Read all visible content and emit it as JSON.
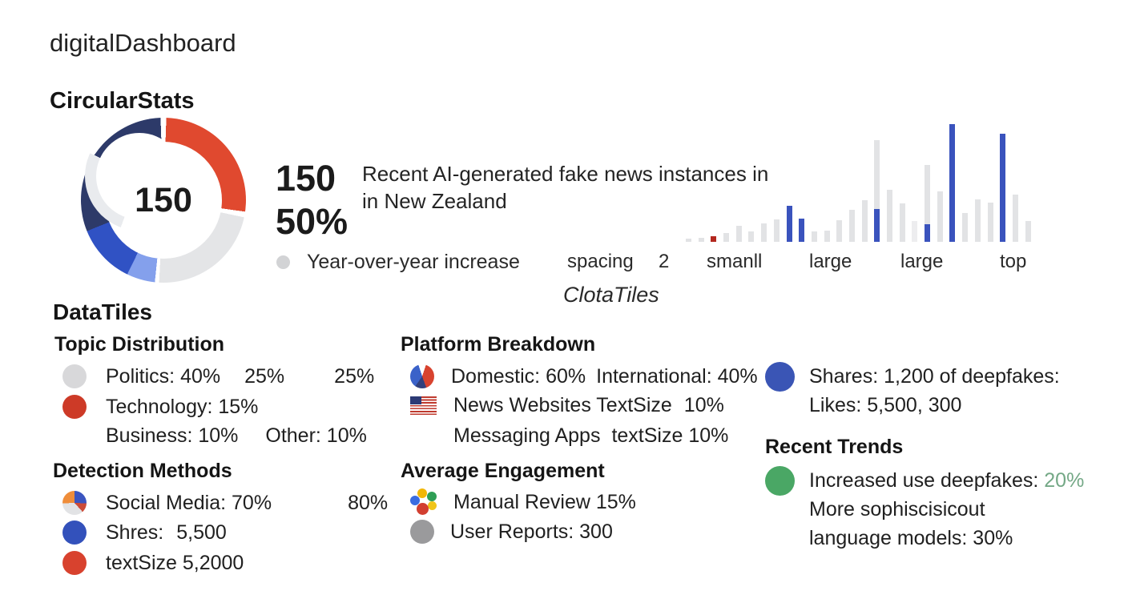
{
  "app": {
    "title": "digitalDashboard"
  },
  "circular_stats": {
    "heading": "CircularStats",
    "stat_value": "150",
    "stat_percent": "50%",
    "description_line1": "Recent AI-generated fake news instances in",
    "description_line2": "in New Zealand",
    "legend_label": "Year-over-year increase",
    "caption": "ClotaTiles"
  },
  "chart_data": [
    {
      "type": "donut",
      "title": "CircularStats donut",
      "center_label": "150",
      "segments": [
        {
          "label": "red",
          "percent": 27,
          "color": "#e0492f"
        },
        {
          "label": "light-gray",
          "percent": 23,
          "color": "#e4e5e7"
        },
        {
          "label": "light-blue",
          "percent": 5,
          "color": "#84a0ec"
        },
        {
          "label": "mid-blue",
          "percent": 12,
          "color": "#3052c4"
        },
        {
          "label": "navy",
          "percent": 33,
          "color": "#2d3a69"
        }
      ],
      "gradient_stops": [
        [
          "#ffffff",
          0,
          2
        ],
        [
          "#e0492f",
          2,
          98
        ],
        [
          "#ffffff",
          98,
          102
        ],
        [
          "#e4e5e7",
          102,
          183
        ],
        [
          "#ffffff",
          183,
          186
        ],
        [
          "#84a0ec",
          186,
          206
        ],
        [
          "#3052c4",
          206,
          248
        ],
        [
          "#2d3a69",
          248,
          358
        ],
        [
          "#ffffff",
          358,
          360
        ]
      ],
      "inner_arc_stops": [
        [
          "rgba(0,0,0,0)",
          0,
          200
        ],
        [
          "#e9ebee",
          200,
          295
        ],
        [
          "rgba(0,0,0,0)",
          295,
          360
        ]
      ]
    },
    {
      "type": "bar",
      "title": "Year-over-year sparkline",
      "palette": {
        "gray": "#e2e3e5",
        "lightgray": "#ededef",
        "blue": "#3a53bd",
        "red": "#b3271e"
      },
      "x_labels": [
        "spacing",
        "2",
        "smanll",
        "large",
        "large",
        "top"
      ],
      "ylim": [
        0,
        150
      ],
      "bars": [
        {
          "h": 4,
          "c": "gray"
        },
        {
          "h": 5,
          "c": "gray"
        },
        {
          "h": 7,
          "c": "red"
        },
        {
          "h": 11,
          "c": "gray"
        },
        {
          "h": 20,
          "c": "gray"
        },
        {
          "h": 13,
          "c": "gray"
        },
        {
          "h": 23,
          "c": "gray"
        },
        {
          "h": 28,
          "c": "gray"
        },
        {
          "h": 45,
          "c": "blue"
        },
        {
          "h": 29,
          "c": "blue"
        },
        {
          "h": 13,
          "c": "gray"
        },
        {
          "h": 14,
          "c": "gray"
        },
        {
          "h": 27,
          "c": "gray"
        },
        {
          "h": 40,
          "c": "gray"
        },
        {
          "h": 52,
          "c": "gray"
        },
        {
          "h": 127,
          "c": "gray",
          "blue_bottom": 41
        },
        {
          "h": 65,
          "c": "gray"
        },
        {
          "h": 48,
          "c": "gray"
        },
        {
          "h": 26,
          "c": "lightgray"
        },
        {
          "h": 96,
          "c": "gray",
          "blue_bottom": 22
        },
        {
          "h": 63,
          "c": "gray"
        },
        {
          "h": 147,
          "c": "blue"
        },
        {
          "h": 36,
          "c": "gray"
        },
        {
          "h": 53,
          "c": "gray"
        },
        {
          "h": 49,
          "c": "gray"
        },
        {
          "h": 135,
          "c": "blue"
        },
        {
          "h": 59,
          "c": "gray"
        },
        {
          "h": 26,
          "c": "gray"
        }
      ]
    }
  ],
  "tiles": {
    "heading": "DataTiles",
    "topic": {
      "heading": "Topic Distribution",
      "r1a": "Politics: 40%",
      "r1b": "25%",
      "r1c": "25%",
      "r2": "Technology: 15%",
      "r3a": "Business: 10%",
      "r3b": "Other: 10%"
    },
    "platform": {
      "heading": "Platform Breakdown",
      "r1a": "Domestic: 60%",
      "r1b": "International: 40%",
      "r2a": "News Websites TextSize",
      "r2b": "10%",
      "r3a": "Messaging Apps",
      "r3b": "textSize 10%"
    },
    "shares": {
      "line1": "Shares: 1,200 of deepfakes:",
      "line2": "Likes: 5,500, 300"
    },
    "detection": {
      "heading": "Detection Methods",
      "r1a": "Social Media: 70%",
      "r1b": "80%",
      "r2a": "Shres:",
      "r2b": "5,500",
      "r3": "textSize 5,2000"
    },
    "engagement": {
      "heading": "Average Engagement",
      "r1": "Manual Review 15%",
      "r2": "User Reports: 300"
    },
    "trends": {
      "heading": "Recent Trends",
      "line1": "Increased use deepfakes:",
      "line1_pct": "20%",
      "line2": "More sophiscisicout",
      "line3": "language models: 30%"
    }
  },
  "colors": {
    "text": "#1e1e1e",
    "green_text": "#74a886",
    "legend_dot": "#d2d3d5",
    "politics_dot": "#d8d8da",
    "technology_dot": "#cd3a27",
    "shres_dot": "#3351bb",
    "textsize_dot": "#d8422e",
    "user_reports_dot": "#9a9a9c",
    "shares_dot": "#3a55b5",
    "trends_dot": "#4aa765"
  },
  "icons": {
    "platform_donut_stops": [
      [
        "#ffffff",
        0,
        18
      ],
      [
        "#d8432f",
        18,
        160
      ],
      [
        "#31407c",
        160,
        215
      ],
      [
        "#3b62c9",
        215,
        342
      ],
      [
        "#ffffff",
        342,
        360
      ]
    ],
    "social_pie_stops": [
      [
        "#3b55c0",
        0,
        92
      ],
      [
        "#cc4b38",
        92,
        138
      ],
      [
        "#e2e3e5",
        138,
        268
      ],
      [
        "#ef8d3a",
        268,
        360
      ]
    ],
    "engagement_dot_colors": [
      "#f2b705",
      "#2f9e55",
      "#f0c419",
      "#d23f31",
      "#3b6ce0"
    ]
  }
}
